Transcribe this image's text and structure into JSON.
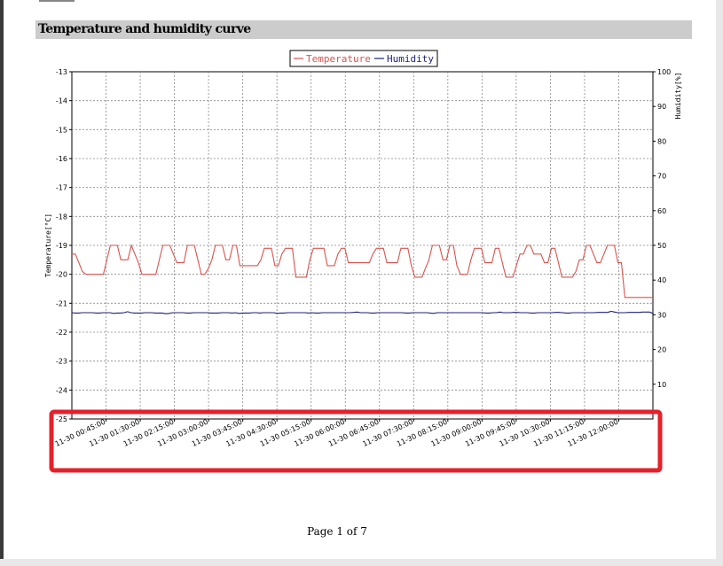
{
  "page": {
    "section_title": "Temperature and humidity curve",
    "footer": "Page 1 of 7"
  },
  "colors": {
    "temperature": "#d9534f",
    "humidity": "#1f1f7a",
    "highlight": "#e4212b",
    "section_bar": "#cccccc"
  },
  "chart_data": {
    "type": "line",
    "title": "",
    "legend_placement": "top-center",
    "grid": true,
    "x_axis": {
      "tick_labels": [
        "11-30 00:45:00",
        "11-30 01:30:00",
        "11-30 02:15:00",
        "11-30 03:00:00",
        "11-30 03:45:00",
        "11-30 04:30:00",
        "11-30 05:15:00",
        "11-30 06:00:00",
        "11-30 06:45:00",
        "11-30 07:30:00",
        "11-30 08:15:00",
        "11-30 09:00:00",
        "11-30 09:45:00",
        "11-30 10:30:00",
        "11-30 11:15:00",
        "11-30 12:00:00"
      ],
      "range": [
        "11-30 00:00:00",
        "11-30 12:45:00"
      ]
    },
    "y_left": {
      "label": "Temperature[°C]",
      "ylim": [
        -25,
        -13
      ],
      "ticks": [
        -13,
        -14,
        -15,
        -16,
        -17,
        -18,
        -19,
        -20,
        -21,
        -22,
        -23,
        -24,
        -25
      ]
    },
    "y_right": {
      "label": "Humidity[%]",
      "ylim": [
        0,
        100
      ],
      "ticks": [
        100,
        90,
        80,
        70,
        60,
        50,
        40,
        30,
        20,
        10
      ]
    },
    "series": [
      {
        "name": "Temperature",
        "axis": "left",
        "values": [
          -19.3,
          -19.3,
          -19.6,
          -19.9,
          -20.0,
          -20.0,
          -20.0,
          -20.0,
          -20.0,
          -20.0,
          -19.5,
          -19.0,
          -19.0,
          -19.0,
          -19.5,
          -19.5,
          -19.5,
          -19.0,
          -19.3,
          -19.6,
          -20.0,
          -20.0,
          -20.0,
          -20.0,
          -20.0,
          -19.5,
          -19.0,
          -19.0,
          -19.0,
          -19.3,
          -19.6,
          -19.6,
          -19.6,
          -19.0,
          -19.0,
          -19.0,
          -19.5,
          -20.0,
          -20.0,
          -19.8,
          -19.5,
          -19.0,
          -19.0,
          -19.0,
          -19.5,
          -19.5,
          -19.0,
          -19.0,
          -19.7,
          -19.7,
          -19.7,
          -19.7,
          -19.7,
          -19.7,
          -19.5,
          -19.1,
          -19.1,
          -19.1,
          -19.7,
          -19.7,
          -19.3,
          -19.1,
          -19.1,
          -19.1,
          -20.1,
          -20.1,
          -20.1,
          -20.1,
          -19.5,
          -19.1,
          -19.1,
          -19.1,
          -19.1,
          -19.7,
          -19.7,
          -19.7,
          -19.3,
          -19.1,
          -19.1,
          -19.6,
          -19.6,
          -19.6,
          -19.6,
          -19.6,
          -19.6,
          -19.6,
          -19.3,
          -19.1,
          -19.1,
          -19.1,
          -19.6,
          -19.6,
          -19.6,
          -19.6,
          -19.1,
          -19.1,
          -19.1,
          -19.7,
          -20.1,
          -20.1,
          -20.1,
          -19.8,
          -19.5,
          -19.0,
          -19.0,
          -19.0,
          -19.5,
          -19.5,
          -19.0,
          -19.0,
          -19.7,
          -20.0,
          -20.0,
          -20.0,
          -19.5,
          -19.1,
          -19.1,
          -19.1,
          -19.6,
          -19.6,
          -19.6,
          -19.1,
          -19.1,
          -19.6,
          -20.1,
          -20.1,
          -20.1,
          -19.7,
          -19.3,
          -19.3,
          -19.0,
          -19.0,
          -19.3,
          -19.3,
          -19.3,
          -19.6,
          -19.6,
          -19.1,
          -19.1,
          -19.6,
          -20.1,
          -20.1,
          -20.1,
          -20.1,
          -19.9,
          -19.5,
          -19.5,
          -19.0,
          -19.0,
          -19.3,
          -19.6,
          -19.6,
          -19.3,
          -19.0,
          -19.0,
          -19.0,
          -19.6,
          -19.6,
          -20.8,
          -20.8,
          -20.8,
          -20.8,
          -20.8,
          -20.8,
          -20.8,
          -20.8,
          -20.8
        ]
      },
      {
        "name": "Humidity",
        "axis": "right",
        "values": [
          30.6,
          30.5,
          30.5,
          30.6,
          30.6,
          30.6,
          30.6,
          30.5,
          30.5,
          30.6,
          30.6,
          30.6,
          30.4,
          30.5,
          30.5,
          30.6,
          30.9,
          30.6,
          30.5,
          30.5,
          30.5,
          30.6,
          30.6,
          30.6,
          30.5,
          30.5,
          30.5,
          30.3,
          30.4,
          30.6,
          30.6,
          30.6,
          30.6,
          30.5,
          30.5,
          30.6,
          30.6,
          30.6,
          30.6,
          30.6,
          30.5,
          30.5,
          30.5,
          30.6,
          30.6,
          30.6,
          30.5,
          30.6,
          30.4,
          30.5,
          30.5,
          30.5,
          30.6,
          30.6,
          30.5,
          30.6,
          30.6,
          30.6,
          30.6,
          30.4,
          30.5,
          30.5,
          30.6,
          30.6,
          30.6,
          30.6,
          30.6,
          30.6,
          30.5,
          30.6,
          30.5,
          30.5,
          30.6,
          30.6,
          30.6,
          30.6,
          30.6,
          30.6,
          30.6,
          30.6,
          30.6,
          30.7,
          30.8,
          30.6,
          30.6,
          30.6,
          30.5,
          30.5,
          30.6,
          30.6,
          30.6,
          30.6,
          30.6,
          30.6,
          30.6,
          30.6,
          30.5,
          30.5,
          30.6,
          30.6,
          30.6,
          30.6,
          30.6,
          30.5,
          30.4,
          30.6,
          30.6,
          30.6,
          30.6,
          30.6,
          30.6,
          30.6,
          30.6,
          30.6,
          30.6,
          30.6,
          30.6,
          30.6,
          30.6,
          30.5,
          30.5,
          30.6,
          30.6,
          30.8,
          30.6,
          30.6,
          30.6,
          30.7,
          30.7,
          30.6,
          30.6,
          30.6,
          30.5,
          30.5,
          30.6,
          30.6,
          30.6,
          30.6,
          30.6,
          30.7,
          30.7,
          30.6,
          30.5,
          30.5,
          30.6,
          30.6,
          30.6,
          30.6,
          30.6,
          30.6,
          30.6,
          30.7,
          30.7,
          30.7,
          30.7,
          31.0,
          30.8,
          30.6,
          30.6,
          30.6,
          30.7,
          30.7,
          30.7,
          30.7,
          30.8,
          30.8,
          30.8,
          30.4
        ]
      }
    ]
  }
}
